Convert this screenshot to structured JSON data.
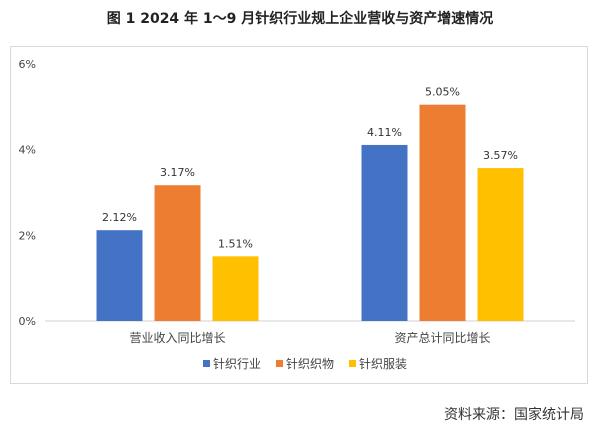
{
  "title": "图 1   2024 年 1～9 月针织行业规上企业营收与资产增速情况",
  "source": "资料来源：国家统计局",
  "chart_data": {
    "type": "bar",
    "categories": [
      "营业收入同比增长",
      "资产总计同比增长"
    ],
    "series": [
      {
        "name": "针织行业",
        "color": "#4472C4",
        "values": [
          2.12,
          4.11
        ],
        "labels": [
          "2.12%",
          "4.11%"
        ]
      },
      {
        "name": "针织织物",
        "color": "#ED7D31",
        "values": [
          3.17,
          5.05
        ],
        "labels": [
          "3.17%",
          "5.05%"
        ]
      },
      {
        "name": "针织服装",
        "color": "#FFC000",
        "values": [
          1.51,
          3.57
        ],
        "labels": [
          "1.51%",
          "3.57%"
        ]
      }
    ],
    "ylim": [
      0,
      6
    ],
    "yticks": [
      "0%",
      "2%",
      "4%",
      "6%"
    ],
    "grid": false,
    "legend": "bottom"
  }
}
